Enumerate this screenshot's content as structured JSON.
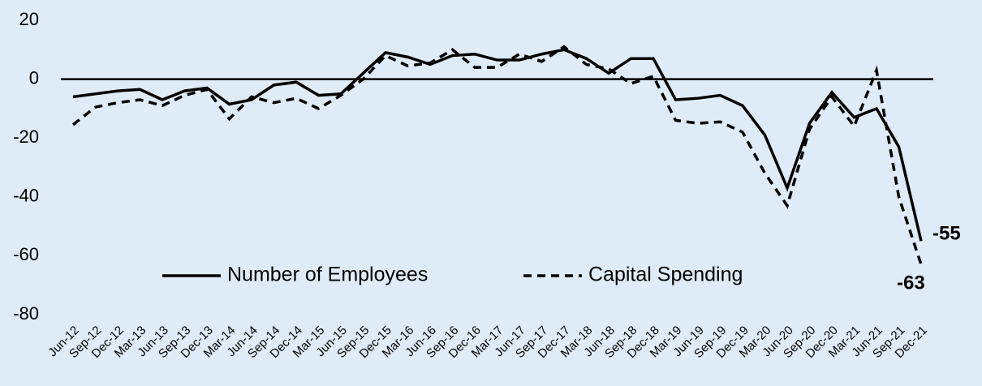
{
  "chart_data": {
    "type": "line",
    "categories": [
      "Jun-12",
      "Sep-12",
      "Dec-12",
      "Mar-13",
      "Jun-13",
      "Sep-13",
      "Dec-13",
      "Mar-14",
      "Jun-14",
      "Sep-14",
      "Dec-14",
      "Mar-15",
      "Jun-15",
      "Sep-15",
      "Dec-15",
      "Mar-16",
      "Jun-16",
      "Sep-16",
      "Dec-16",
      "Mar-17",
      "Jun-17",
      "Sep-17",
      "Dec-17",
      "Mar-18",
      "Jun-18",
      "Sep-18",
      "Dec-18",
      "Mar-19",
      "Jun-19",
      "Sep-19",
      "Dec-19",
      "Mar-20",
      "Jun-20",
      "Sep-20",
      "Dec-20",
      "Mar-21",
      "Jun-21",
      "Sep-21",
      "Dec-21"
    ],
    "series": [
      {
        "name": "Number of Employees",
        "color": "#000000",
        "dash": "solid",
        "values": [
          -6,
          -5,
          -4,
          -3.5,
          -7,
          -4,
          -3,
          -8.5,
          -7,
          -2,
          -1,
          -5.5,
          -5,
          2,
          9,
          7.5,
          5,
          8,
          8.5,
          6.5,
          6.5,
          8.5,
          10,
          7,
          2,
          7,
          7,
          -7,
          -6.5,
          -5.5,
          -9,
          -19,
          -37,
          -15,
          -4.5,
          -13,
          -10,
          -23,
          -55
        ]
      },
      {
        "name": "Capital Spending",
        "color": "#000000",
        "dash": "dashed",
        "values": [
          -15.5,
          -9.5,
          -8,
          -7,
          -9,
          -5.5,
          -3.5,
          -13.5,
          -6,
          -8,
          -6.5,
          -10,
          -5.5,
          0,
          8,
          4.5,
          5.5,
          10,
          4,
          4,
          8.5,
          6,
          11,
          5,
          3.5,
          -1.5,
          1,
          -14,
          -15,
          -14.5,
          -18,
          -32,
          -43,
          -17,
          -6,
          -16,
          3,
          -40,
          -63
        ]
      }
    ],
    "ylim": [
      -80,
      20
    ],
    "yticks": [
      20,
      0,
      -20,
      -40,
      -60,
      -80
    ],
    "grid": false,
    "legend": "bottom-left"
  }
}
